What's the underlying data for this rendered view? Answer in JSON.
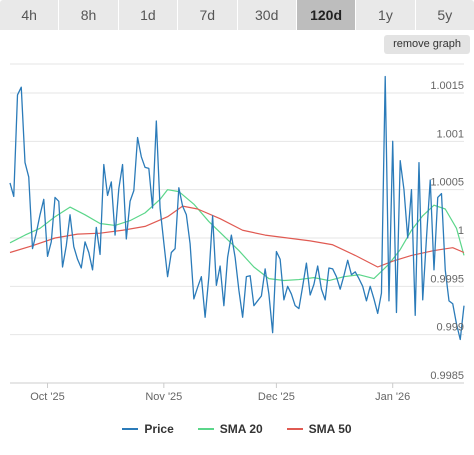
{
  "toolbar": {
    "ranges": [
      "4h",
      "8h",
      "1d",
      "7d",
      "30d",
      "120d",
      "1y",
      "5y"
    ],
    "active_range": "120d",
    "remove_label": "remove graph"
  },
  "chart_data": {
    "type": "line",
    "ylim": [
      0.9985,
      1.0018
    ],
    "yticks": [
      0.9985,
      0.999,
      0.9995,
      1,
      1.0005,
      1.001,
      1.0015
    ],
    "ytick_labels": [
      "0.9985",
      "0.999",
      "0.9995",
      "1",
      "1.0005",
      "1.001",
      "1.0015"
    ],
    "xlim": [
      "2025-09-21",
      "2026-01-20"
    ],
    "xticks": [
      "2025-10-01",
      "2025-11-01",
      "2025-12-01",
      "2026-01-01"
    ],
    "xtick_labels": [
      "Oct '25",
      "Nov '25",
      "Dec '25",
      "Jan '26"
    ],
    "grid": true,
    "legend_position": "bottom",
    "series": [
      {
        "name": "Price",
        "color": "#2b7bb9",
        "points": [
          [
            "2025-09-21",
            1.00057
          ],
          [
            "2025-09-22",
            1.00043
          ],
          [
            "2025-09-23",
            1.00148
          ],
          [
            "2025-09-24",
            1.00156
          ],
          [
            "2025-09-25",
            1.00078
          ],
          [
            "2025-09-26",
            1.00063
          ],
          [
            "2025-09-27",
            0.99989
          ],
          [
            "2025-09-28",
            1.00005
          ],
          [
            "2025-09-29",
            1.00024
          ],
          [
            "2025-09-30",
            1.0004
          ],
          [
            "2025-10-01",
            0.99981
          ],
          [
            "2025-10-02",
            0.99996
          ],
          [
            "2025-10-03",
            1.00042
          ],
          [
            "2025-10-04",
            1.00038
          ],
          [
            "2025-10-05",
            0.9997
          ],
          [
            "2025-10-06",
            0.99992
          ],
          [
            "2025-10-07",
            1.00024
          ],
          [
            "2025-10-08",
            0.99991
          ],
          [
            "2025-10-09",
            0.99978
          ],
          [
            "2025-10-10",
            0.99969
          ],
          [
            "2025-10-11",
            0.99996
          ],
          [
            "2025-10-12",
            0.99985
          ],
          [
            "2025-10-13",
            0.99967
          ],
          [
            "2025-10-14",
            1.00011
          ],
          [
            "2025-10-15",
            0.99983
          ],
          [
            "2025-10-16",
            1.00076
          ],
          [
            "2025-10-17",
            1.00044
          ],
          [
            "2025-10-18",
            1.00058
          ],
          [
            "2025-10-19",
            1.00003
          ],
          [
            "2025-10-20",
            1.00051
          ],
          [
            "2025-10-21",
            1.00076
          ],
          [
            "2025-10-22",
            0.99999
          ],
          [
            "2025-10-23",
            1.00038
          ],
          [
            "2025-10-24",
            1.00049
          ],
          [
            "2025-10-25",
            1.00104
          ],
          [
            "2025-10-26",
            1.00084
          ],
          [
            "2025-10-27",
            1.00073
          ],
          [
            "2025-10-28",
            1.00072
          ],
          [
            "2025-10-29",
            1.00031
          ],
          [
            "2025-10-30",
            1.00121
          ],
          [
            "2025-10-31",
            1.00031
          ],
          [
            "2025-11-01",
            0.99995
          ],
          [
            "2025-11-02",
            0.9996
          ],
          [
            "2025-11-03",
            0.99985
          ],
          [
            "2025-11-04",
            0.99989
          ],
          [
            "2025-11-05",
            1.00052
          ],
          [
            "2025-11-06",
            1.00033
          ],
          [
            "2025-11-07",
            1.00024
          ],
          [
            "2025-11-08",
            0.99994
          ],
          [
            "2025-11-09",
            0.99937
          ],
          [
            "2025-11-10",
            0.99949
          ],
          [
            "2025-11-11",
            0.9996
          ],
          [
            "2025-11-12",
            0.99918
          ],
          [
            "2025-11-13",
            0.9996
          ],
          [
            "2025-11-14",
            1.00023
          ],
          [
            "2025-11-15",
            0.99951
          ],
          [
            "2025-11-16",
            0.99971
          ],
          [
            "2025-11-17",
            0.9993
          ],
          [
            "2025-11-18",
            0.9998
          ],
          [
            "2025-11-19",
            1.00003
          ],
          [
            "2025-11-20",
            0.9998
          ],
          [
            "2025-11-21",
            0.99946
          ],
          [
            "2025-11-22",
            0.99918
          ],
          [
            "2025-11-23",
            0.9996
          ],
          [
            "2025-11-24",
            0.99961
          ],
          [
            "2025-11-25",
            0.9993
          ],
          [
            "2025-11-26",
            0.99935
          ],
          [
            "2025-11-27",
            0.9994
          ],
          [
            "2025-11-28",
            0.99968
          ],
          [
            "2025-11-29",
            0.99942
          ],
          [
            "2025-11-30",
            0.99902
          ],
          [
            "2025-12-01",
            0.99986
          ],
          [
            "2025-12-02",
            0.99978
          ],
          [
            "2025-12-03",
            0.99936
          ],
          [
            "2025-12-04",
            0.9995
          ],
          [
            "2025-12-05",
            0.99942
          ],
          [
            "2025-12-06",
            0.9993
          ],
          [
            "2025-12-07",
            0.99927
          ],
          [
            "2025-12-08",
            0.9995
          ],
          [
            "2025-12-09",
            0.99974
          ],
          [
            "2025-12-10",
            0.99941
          ],
          [
            "2025-12-11",
            0.99952
          ],
          [
            "2025-12-12",
            0.99971
          ],
          [
            "2025-12-13",
            0.99947
          ],
          [
            "2025-12-14",
            0.99936
          ],
          [
            "2025-12-15",
            0.99969
          ],
          [
            "2025-12-16",
            0.99968
          ],
          [
            "2025-12-17",
            0.9996
          ],
          [
            "2025-12-18",
            0.99947
          ],
          [
            "2025-12-19",
            0.99961
          ],
          [
            "2025-12-20",
            0.99977
          ],
          [
            "2025-12-21",
            0.99962
          ],
          [
            "2025-12-22",
            0.99965
          ],
          [
            "2025-12-23",
            0.99958
          ],
          [
            "2025-12-24",
            0.9995
          ],
          [
            "2025-12-25",
            0.99935
          ],
          [
            "2025-12-26",
            0.9995
          ],
          [
            "2025-12-27",
            0.99937
          ],
          [
            "2025-12-28",
            0.99922
          ],
          [
            "2025-12-29",
            0.99943
          ],
          [
            "2025-12-30",
            1.00167
          ],
          [
            "2025-12-31",
            0.99935
          ],
          [
            "2026-01-01",
            1.001
          ],
          [
            "2026-01-02",
            0.99923
          ],
          [
            "2026-01-03",
            1.0008
          ],
          [
            "2026-01-04",
            1.0005
          ],
          [
            "2026-01-05",
            1.0
          ],
          [
            "2026-01-06",
            1.0005
          ],
          [
            "2026-01-07",
            0.9992
          ],
          [
            "2026-01-08",
            1.00078
          ],
          [
            "2026-01-09",
            0.99936
          ],
          [
            "2026-01-10",
            1.0
          ],
          [
            "2026-01-11",
            1.0006
          ],
          [
            "2026-01-12",
            0.99967
          ],
          [
            "2026-01-13",
            1.00042
          ],
          [
            "2026-01-14",
            1.00046
          ],
          [
            "2026-01-15",
            0.99967
          ],
          [
            "2026-01-16",
            0.99935
          ],
          [
            "2026-01-17",
            0.99932
          ],
          [
            "2026-01-18",
            0.99911
          ],
          [
            "2026-01-19",
            0.99895
          ],
          [
            "2026-01-20",
            0.9993
          ]
        ]
      },
      {
        "name": "SMA 20",
        "color": "#5bd68a",
        "points": [
          [
            "2025-09-21",
            0.99995
          ],
          [
            "2025-09-25",
            1.00003
          ],
          [
            "2025-09-29",
            1.0001
          ],
          [
            "2025-10-03",
            1.00022
          ],
          [
            "2025-10-07",
            1.00032
          ],
          [
            "2025-10-11",
            1.00024
          ],
          [
            "2025-10-15",
            1.00015
          ],
          [
            "2025-10-19",
            1.00013
          ],
          [
            "2025-10-23",
            1.00018
          ],
          [
            "2025-10-27",
            1.00026
          ],
          [
            "2025-10-31",
            1.0004
          ],
          [
            "2025-11-02",
            1.0005
          ],
          [
            "2025-11-05",
            1.00048
          ],
          [
            "2025-11-09",
            1.00035
          ],
          [
            "2025-11-13",
            1.00017
          ],
          [
            "2025-11-17",
            1.00002
          ],
          [
            "2025-11-21",
            0.99987
          ],
          [
            "2025-11-25",
            0.9997
          ],
          [
            "2025-11-29",
            0.99958
          ],
          [
            "2025-12-03",
            0.99956
          ],
          [
            "2025-12-07",
            0.99957
          ],
          [
            "2025-12-11",
            0.99959
          ],
          [
            "2025-12-15",
            0.99956
          ],
          [
            "2025-12-19",
            0.9996
          ],
          [
            "2025-12-23",
            0.99962
          ],
          [
            "2025-12-27",
            0.99958
          ],
          [
            "2025-12-31",
            0.99973
          ],
          [
            "2026-01-03",
            0.99988
          ],
          [
            "2026-01-06",
            1.00008
          ],
          [
            "2026-01-09",
            1.00023
          ],
          [
            "2026-01-12",
            1.00034
          ],
          [
            "2026-01-15",
            1.0003
          ],
          [
            "2026-01-18",
            1.0001
          ],
          [
            "2026-01-20",
            0.99982
          ]
        ]
      },
      {
        "name": "SMA 50",
        "color": "#e05a52",
        "points": [
          [
            "2025-09-21",
            0.99985
          ],
          [
            "2025-09-27",
            0.99992
          ],
          [
            "2025-10-03",
            1.0
          ],
          [
            "2025-10-09",
            1.00004
          ],
          [
            "2025-10-15",
            1.00005
          ],
          [
            "2025-10-21",
            1.00008
          ],
          [
            "2025-10-27",
            1.00012
          ],
          [
            "2025-11-02",
            1.00022
          ],
          [
            "2025-11-06",
            1.00033
          ],
          [
            "2025-11-10",
            1.0003
          ],
          [
            "2025-11-16",
            1.0002
          ],
          [
            "2025-11-22",
            1.00008
          ],
          [
            "2025-11-28",
            1.00003
          ],
          [
            "2025-12-04",
            1.0
          ],
          [
            "2025-12-10",
            0.99997
          ],
          [
            "2025-12-16",
            0.99993
          ],
          [
            "2025-12-22",
            0.99982
          ],
          [
            "2025-12-28",
            0.9997
          ],
          [
            "2026-01-01",
            0.99976
          ],
          [
            "2026-01-06",
            0.99982
          ],
          [
            "2026-01-12",
            0.99987
          ],
          [
            "2026-01-17",
            0.9999
          ],
          [
            "2026-01-20",
            0.99985
          ]
        ]
      }
    ]
  }
}
